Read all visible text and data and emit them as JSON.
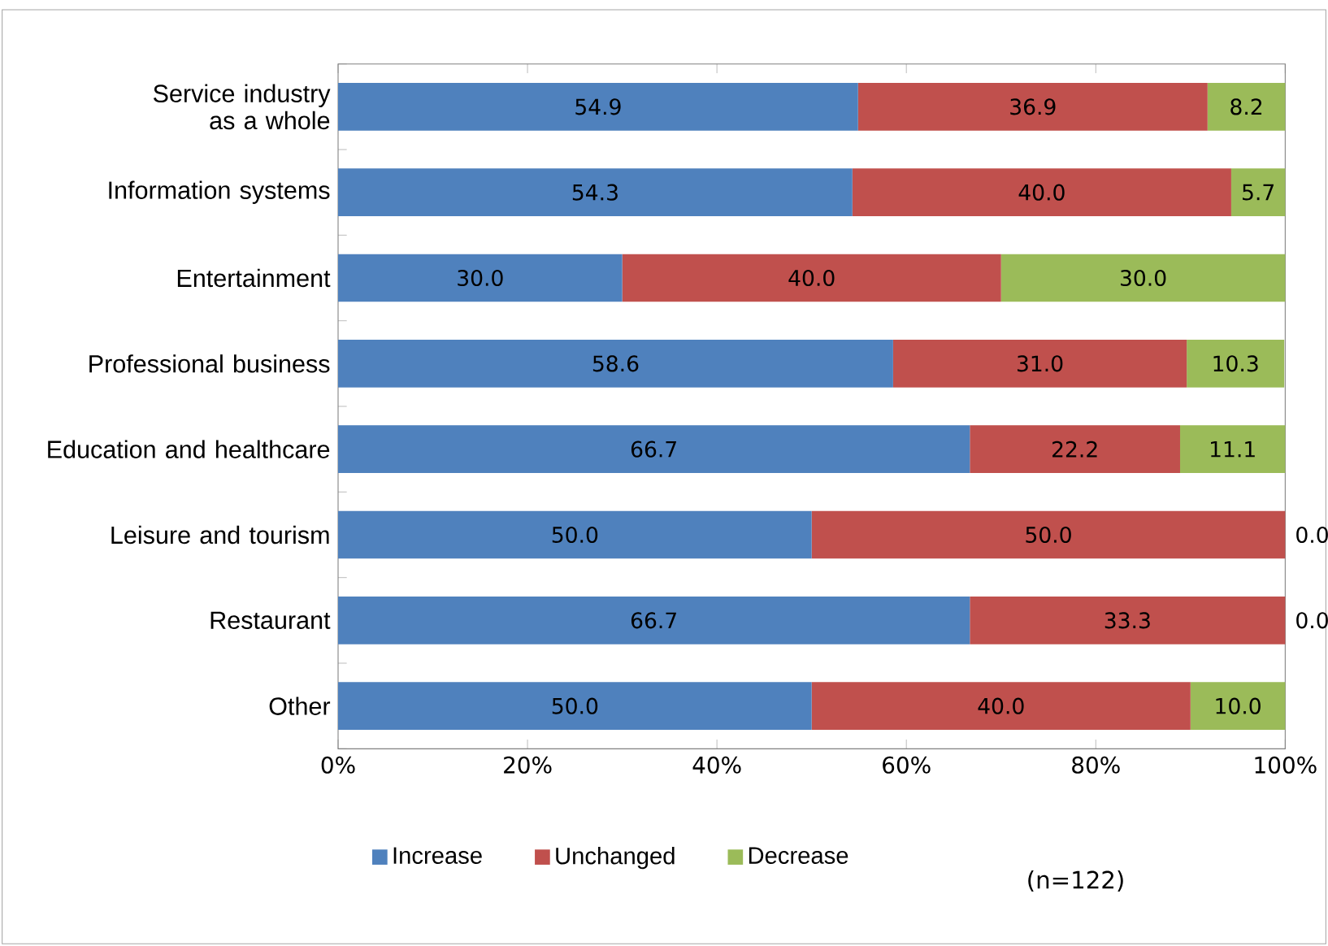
{
  "chart_data": {
    "type": "bar",
    "orientation": "horizontal",
    "stacked": true,
    "legend": "bottom",
    "grid": false,
    "categories": [
      "Service industry as a whole",
      "Information systems",
      "Entertainment",
      "Professional business",
      "Education and healthcare",
      "Leisure and tourism",
      "Restaurant",
      "Other"
    ],
    "series": [
      {
        "name": "Increase",
        "color": "#4f81bd",
        "values": [
          54.9,
          54.3,
          30.0,
          58.6,
          66.7,
          50.0,
          66.7,
          50.0
        ],
        "value_labels": [
          "54.9",
          "54.3",
          "30.0",
          "58.6",
          "66.7",
          "50.0",
          "66.7",
          "50.0"
        ]
      },
      {
        "name": "Unchanged",
        "color": "#c0504d",
        "values": [
          36.9,
          40.0,
          40.0,
          31.0,
          22.2,
          50.0,
          33.3,
          40.0
        ],
        "value_labels": [
          "36.9",
          "40.0",
          "40.0",
          "31.0",
          "22.2",
          "50.0",
          "33.3",
          "40.0"
        ]
      },
      {
        "name": "Decrease",
        "color": "#9bbb59",
        "values": [
          8.2,
          5.7,
          30.0,
          10.3,
          11.1,
          0.0,
          0.0,
          10.0
        ],
        "value_labels": [
          "8.2",
          "5.7",
          "30.0",
          "10.3",
          "11.1",
          "0.0",
          "0.0",
          "10.0"
        ]
      }
    ],
    "xlim": [
      0,
      100
    ],
    "xticks": [
      {
        "value": 0,
        "label": "0%"
      },
      {
        "value": 20,
        "label": "20%"
      },
      {
        "value": 40,
        "label": "40%"
      },
      {
        "value": 60,
        "label": "60%"
      },
      {
        "value": 80,
        "label": "80%"
      },
      {
        "value": 100,
        "label": "100%"
      }
    ],
    "annotations": [
      "(n=122)"
    ]
  }
}
